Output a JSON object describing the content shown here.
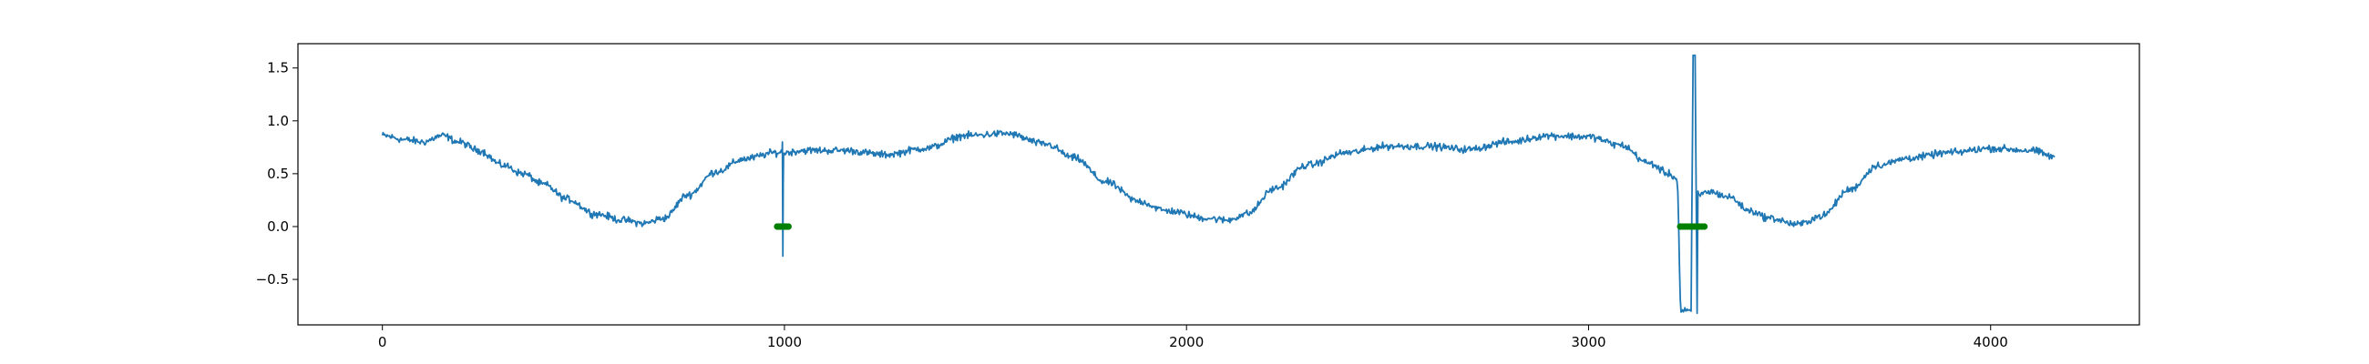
{
  "chart_data": {
    "type": "line",
    "title": "",
    "xlabel": "",
    "ylabel": "",
    "xlim": [
      -210,
      4370
    ],
    "ylim": [
      -0.93,
      1.73
    ],
    "x_ticks": [
      0,
      1000,
      2000,
      3000,
      4000
    ],
    "x_tick_labels": [
      "0",
      "1000",
      "2000",
      "3000",
      "4000"
    ],
    "y_ticks": [
      -0.5,
      0.0,
      0.5,
      1.0,
      1.5
    ],
    "y_tick_labels": [
      "−0.5",
      "0.0",
      "0.5",
      "1.0",
      "1.5"
    ],
    "grid": false,
    "legend": "none",
    "series": [
      {
        "type": "line",
        "color": "#1f77b4",
        "noise_amplitude": 0.05,
        "points": [
          [
            0,
            0.86
          ],
          [
            60,
            0.82
          ],
          [
            100,
            0.8
          ],
          [
            150,
            0.86
          ],
          [
            190,
            0.8
          ],
          [
            240,
            0.72
          ],
          [
            300,
            0.58
          ],
          [
            350,
            0.5
          ],
          [
            400,
            0.4
          ],
          [
            460,
            0.26
          ],
          [
            530,
            0.12
          ],
          [
            600,
            0.06
          ],
          [
            650,
            0.03
          ],
          [
            700,
            0.08
          ],
          [
            760,
            0.3
          ],
          [
            830,
            0.52
          ],
          [
            900,
            0.64
          ],
          [
            980,
            0.7
          ],
          [
            994,
            0.7
          ],
          [
            995,
            0.8
          ],
          [
            996,
            -0.28
          ],
          [
            997,
            0.4
          ],
          [
            998,
            0.7
          ],
          [
            1050,
            0.72
          ],
          [
            1150,
            0.72
          ],
          [
            1250,
            0.68
          ],
          [
            1350,
            0.74
          ],
          [
            1450,
            0.86
          ],
          [
            1550,
            0.88
          ],
          [
            1650,
            0.78
          ],
          [
            1720,
            0.65
          ],
          [
            1800,
            0.42
          ],
          [
            1880,
            0.24
          ],
          [
            1950,
            0.15
          ],
          [
            2050,
            0.08
          ],
          [
            2100,
            0.06
          ],
          [
            2150,
            0.12
          ],
          [
            2220,
            0.36
          ],
          [
            2300,
            0.58
          ],
          [
            2400,
            0.7
          ],
          [
            2500,
            0.76
          ],
          [
            2600,
            0.76
          ],
          [
            2700,
            0.73
          ],
          [
            2800,
            0.8
          ],
          [
            2900,
            0.86
          ],
          [
            3000,
            0.85
          ],
          [
            3080,
            0.77
          ],
          [
            3150,
            0.6
          ],
          [
            3200,
            0.5
          ],
          [
            3220,
            0.45
          ],
          [
            3230,
            -0.8
          ],
          [
            3255,
            -0.8
          ],
          [
            3260,
            1.62
          ],
          [
            3265,
            1.62
          ],
          [
            3270,
            -0.82
          ],
          [
            3272,
            0.3
          ],
          [
            3300,
            0.33
          ],
          [
            3350,
            0.28
          ],
          [
            3400,
            0.15
          ],
          [
            3450,
            0.08
          ],
          [
            3520,
            0.02
          ],
          [
            3580,
            0.1
          ],
          [
            3650,
            0.35
          ],
          [
            3720,
            0.58
          ],
          [
            3800,
            0.65
          ],
          [
            3900,
            0.7
          ],
          [
            4000,
            0.74
          ],
          [
            4100,
            0.72
          ],
          [
            4160,
            0.66
          ]
        ]
      },
      {
        "type": "markers",
        "color": "#008000",
        "points": [
          [
            982,
            0
          ],
          [
            986,
            0
          ],
          [
            990,
            0
          ],
          [
            994,
            0
          ],
          [
            998,
            0
          ],
          [
            1002,
            0
          ],
          [
            1006,
            0
          ],
          [
            1010,
            0
          ],
          [
            3228,
            0
          ],
          [
            3234,
            0
          ],
          [
            3240,
            0
          ],
          [
            3246,
            0
          ],
          [
            3252,
            0
          ],
          [
            3258,
            0
          ],
          [
            3264,
            0
          ],
          [
            3270,
            0
          ],
          [
            3276,
            0
          ],
          [
            3282,
            0
          ],
          [
            3288,
            0
          ]
        ]
      }
    ]
  }
}
